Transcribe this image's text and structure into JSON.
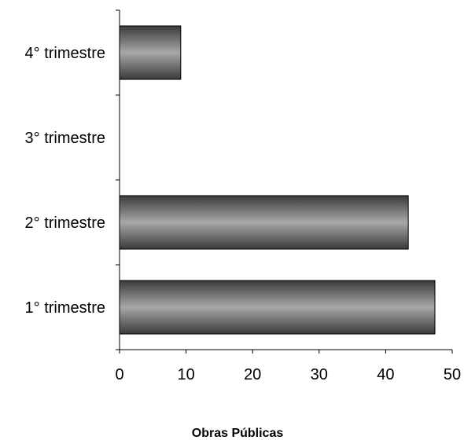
{
  "chart_data": {
    "type": "bar",
    "orientation": "horizontal",
    "categories": [
      "1° trimestre",
      "2° trimestre",
      "3° trimestre",
      "4° trimestre"
    ],
    "values": [
      47.4,
      43.4,
      0,
      9.2
    ],
    "title": "",
    "xlabel": "Obras Públicas",
    "ylabel": "",
    "xlim": [
      0,
      50
    ],
    "xticks": [
      "0",
      "10",
      "20",
      "30",
      "40",
      "50"
    ],
    "grid": false,
    "legend": false,
    "bar_fill": "gray-gradient",
    "colors": {
      "bar_dark": "#3a3a3a",
      "bar_light": "#a8a8a8",
      "axis": "#000000"
    }
  }
}
